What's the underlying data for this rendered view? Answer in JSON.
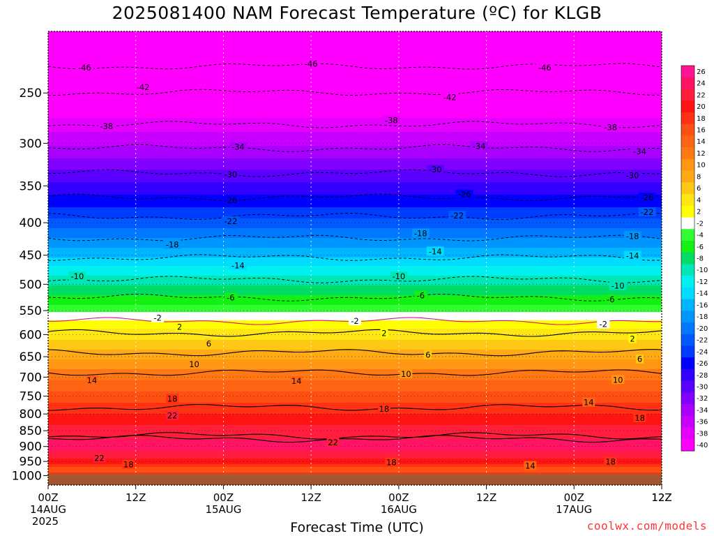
{
  "title": "2025081400 NAM Forecast Temperature (ºC) for KLGB",
  "x_axis_label": "Forecast Time (UTC)",
  "credit": "coolwx.com/models",
  "chart_data": {
    "type": "heatmap",
    "title": "2025081400 NAM Forecast Temperature (ºC) for KLGB",
    "xlabel": "Forecast Time (UTC)",
    "ylabel": "",
    "x_ticks": [
      {
        "hour": 0,
        "lines": [
          "00Z",
          "14AUG",
          "2025"
        ]
      },
      {
        "hour": 12,
        "lines": [
          "12Z"
        ]
      },
      {
        "hour": 24,
        "lines": [
          "00Z",
          "15AUG"
        ]
      },
      {
        "hour": 36,
        "lines": [
          "12Z"
        ]
      },
      {
        "hour": 48,
        "lines": [
          "00Z",
          "16AUG"
        ]
      },
      {
        "hour": 60,
        "lines": [
          "12Z"
        ]
      },
      {
        "hour": 72,
        "lines": [
          "00Z",
          "17AUG"
        ]
      },
      {
        "hour": 84,
        "lines": [
          "12Z"
        ]
      }
    ],
    "xlim": [
      0,
      84
    ],
    "y_ticks": [
      250,
      300,
      350,
      400,
      450,
      500,
      550,
      600,
      650,
      700,
      750,
      800,
      850,
      900,
      950,
      1000
    ],
    "ylim": [
      1035,
      200
    ],
    "y_scale": "log-pressure",
    "colorbar": {
      "labels": [
        "26",
        "24",
        "22",
        "20",
        "18",
        "16",
        "14",
        "12",
        "10",
        "8",
        "6",
        "4",
        "2",
        "-2",
        "-4",
        "-6",
        "-8",
        "-10",
        "-12",
        "-14",
        "-16",
        "-18",
        "-20",
        "-22",
        "-24",
        "-26",
        "-28",
        "-30",
        "-32",
        "-34",
        "-36",
        "-38",
        "-40"
      ],
      "colors": [
        "#ff1493",
        "#ff1464",
        "#ff1e3c",
        "#ff1414",
        "#ff3214",
        "#ff5014",
        "#ff6414",
        "#ff7814",
        "#ff9614",
        "#ffaa14",
        "#ffc814",
        "#ffe614",
        "#ffff00",
        "#ffffff",
        "#32ff32",
        "#14f014",
        "#00dc64",
        "#00e6b4",
        "#00f0f0",
        "#00dcff",
        "#00b4ff",
        "#0096ff",
        "#0078ff",
        "#005aff",
        "#003cff",
        "#0000ff",
        "#3200ff",
        "#5a00ff",
        "#8200ff",
        "#aa00ff",
        "#c800ff",
        "#e600ff",
        "#ff00ff"
      ]
    },
    "temperature_profile": [
      {
        "p": 200,
        "t": -50
      },
      {
        "p": 225,
        "t": -46
      },
      {
        "p": 250,
        "t": -42
      },
      {
        "p": 280,
        "t": -38
      },
      {
        "p": 310,
        "t": -34
      },
      {
        "p": 335,
        "t": -30
      },
      {
        "p": 370,
        "t": -26
      },
      {
        "p": 400,
        "t": -22
      },
      {
        "p": 430,
        "t": -18
      },
      {
        "p": 460,
        "t": -14
      },
      {
        "p": 490,
        "t": -10
      },
      {
        "p": 530,
        "t": -6
      },
      {
        "p": 560,
        "t": -2
      },
      {
        "p": 575,
        "t": 2
      },
      {
        "p": 620,
        "t": 6
      },
      {
        "p": 665,
        "t": 10
      },
      {
        "p": 720,
        "t": 14
      },
      {
        "p": 780,
        "t": 18
      },
      {
        "p": 850,
        "t": 22
      },
      {
        "p": 900,
        "t": 24
      },
      {
        "p": 930,
        "t": 22
      },
      {
        "p": 950,
        "t": 20
      },
      {
        "p": 975,
        "t": 16
      },
      {
        "p": 1000,
        "t": 18
      },
      {
        "p": 1035,
        "t": 20
      }
    ],
    "contour_labels": [
      {
        "hour": 5,
        "p": 228,
        "t": -46
      },
      {
        "hour": 36,
        "p": 225,
        "t": -46
      },
      {
        "hour": 68,
        "p": 228,
        "t": -46
      },
      {
        "hour": 13,
        "p": 245,
        "t": -42
      },
      {
        "hour": 55,
        "p": 254,
        "t": -42
      },
      {
        "hour": 8,
        "p": 282,
        "t": -38
      },
      {
        "hour": 47,
        "p": 276,
        "t": -38
      },
      {
        "hour": 77,
        "p": 283,
        "t": -38
      },
      {
        "hour": 26,
        "p": 304,
        "t": -34
      },
      {
        "hour": 59,
        "p": 303,
        "t": -34
      },
      {
        "hour": 81,
        "p": 309,
        "t": -34
      },
      {
        "hour": 25,
        "p": 336,
        "t": -30
      },
      {
        "hour": 53,
        "p": 330,
        "t": -30
      },
      {
        "hour": 80,
        "p": 337,
        "t": -30
      },
      {
        "hour": 25,
        "p": 369,
        "t": -26
      },
      {
        "hour": 57,
        "p": 361,
        "t": -26
      },
      {
        "hour": 82,
        "p": 365,
        "t": -26
      },
      {
        "hour": 25,
        "p": 398,
        "t": -22
      },
      {
        "hour": 56,
        "p": 390,
        "t": -22
      },
      {
        "hour": 82,
        "p": 385,
        "t": -22
      },
      {
        "hour": 17,
        "p": 433,
        "t": -18
      },
      {
        "hour": 51,
        "p": 416,
        "t": -18
      },
      {
        "hour": 80,
        "p": 420,
        "t": -18
      },
      {
        "hour": 26,
        "p": 467,
        "t": -14
      },
      {
        "hour": 53,
        "p": 444,
        "t": -14
      },
      {
        "hour": 80,
        "p": 451,
        "t": -14
      },
      {
        "hour": 4,
        "p": 486,
        "t": -10
      },
      {
        "hour": 48,
        "p": 486,
        "t": -10
      },
      {
        "hour": 78,
        "p": 503,
        "t": -10
      },
      {
        "hour": 25,
        "p": 525,
        "t": -6
      },
      {
        "hour": 51,
        "p": 521,
        "t": -6
      },
      {
        "hour": 77,
        "p": 528,
        "t": -6
      },
      {
        "hour": 15,
        "p": 565,
        "t": -2
      },
      {
        "hour": 42,
        "p": 571,
        "t": -2
      },
      {
        "hour": 76,
        "p": 578,
        "t": -2
      },
      {
        "hour": 18,
        "p": 584,
        "t": 2
      },
      {
        "hour": 46,
        "p": 597,
        "t": 2
      },
      {
        "hour": 80,
        "p": 609,
        "t": 2
      },
      {
        "hour": 22,
        "p": 620,
        "t": 6
      },
      {
        "hour": 52,
        "p": 646,
        "t": 6
      },
      {
        "hour": 81,
        "p": 656,
        "t": 6
      },
      {
        "hour": 20,
        "p": 668,
        "t": 10
      },
      {
        "hour": 49,
        "p": 692,
        "t": 10
      },
      {
        "hour": 78,
        "p": 707,
        "t": 10
      },
      {
        "hour": 6,
        "p": 708,
        "t": 14
      },
      {
        "hour": 34,
        "p": 710,
        "t": 14
      },
      {
        "hour": 74,
        "p": 767,
        "t": 14
      },
      {
        "hour": 17,
        "p": 757,
        "t": 18
      },
      {
        "hour": 46,
        "p": 786,
        "t": 18
      },
      {
        "hour": 81,
        "p": 812,
        "t": 18
      },
      {
        "hour": 17,
        "p": 805,
        "t": 22
      },
      {
        "hour": 39,
        "p": 887,
        "t": 22
      },
      {
        "hour": 7,
        "p": 939,
        "t": 22
      },
      {
        "hour": 11,
        "p": 961,
        "t": 18
      },
      {
        "hour": 47,
        "p": 953,
        "t": 18
      },
      {
        "hour": 77,
        "p": 951,
        "t": 18
      },
      {
        "hour": 66,
        "p": 966,
        "t": 14
      }
    ]
  }
}
